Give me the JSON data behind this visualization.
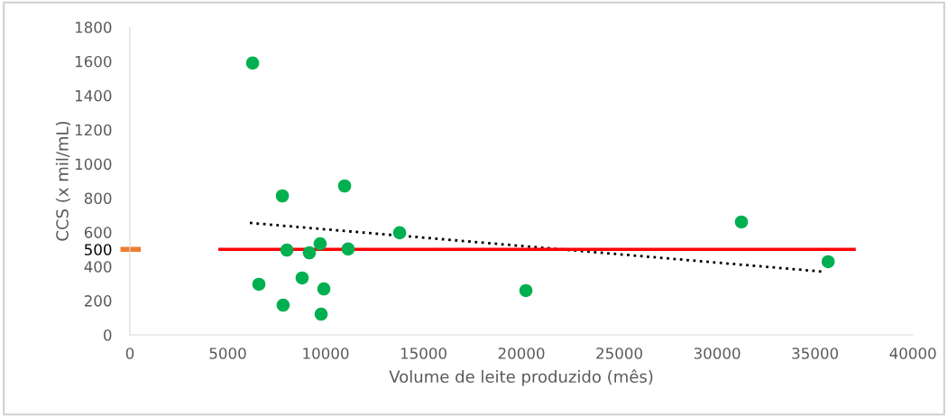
{
  "chart_data": {
    "type": "scatter",
    "xlabel": "Volume de leite produzido (mês)",
    "ylabel": "CCS (x mil/mL)",
    "xlim": [
      0,
      40000
    ],
    "xticks": [
      0,
      5000,
      10000,
      15000,
      20000,
      25000,
      30000,
      35000,
      40000
    ],
    "ylim": [
      0,
      1800
    ],
    "yticks": [
      0,
      200,
      400,
      {
        "value": 500,
        "label": "500"
      },
      600,
      800,
      1000,
      1200,
      1400,
      1600,
      1800
    ],
    "grid": false,
    "legend": false,
    "series": [
      {
        "color": "#00b050",
        "marker": "circle",
        "x": [
          6270,
          7790,
          10970,
          8020,
          9720,
          9170,
          11150,
          13780,
          6590,
          8800,
          9910,
          7830,
          9770,
          20230,
          31240,
          35670
        ],
        "values": [
          1590,
          813,
          871,
          496,
          533,
          480,
          502,
          597,
          296,
          333,
          269,
          174,
          121,
          259,
          660,
          428
        ]
      },
      {
        "type": "line",
        "color": "#000000",
        "line_style": "dotted",
        "marker": "none",
        "x": [
          6130,
          35390
        ],
        "values": [
          655,
          370
        ]
      },
      {
        "type": "line",
        "color": "#ff0000",
        "line_style": "solid",
        "marker": "none",
        "x": [
          4600,
          37000
        ],
        "values": [
          500,
          500
        ]
      }
    ]
  }
}
